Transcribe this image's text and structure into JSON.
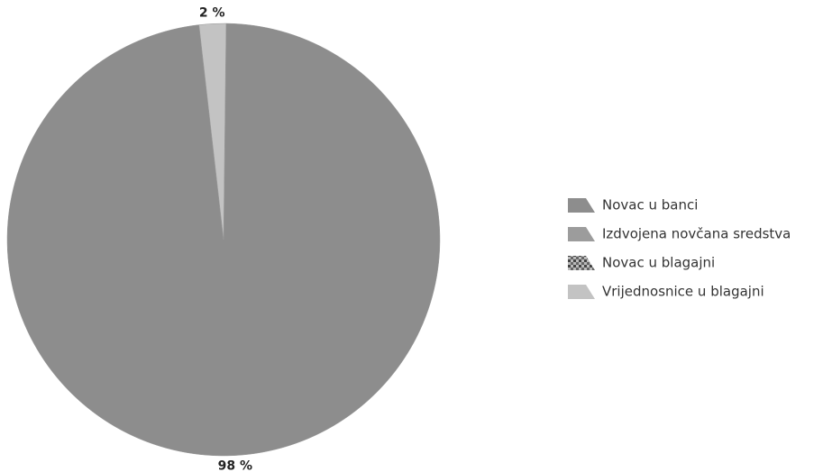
{
  "chart_data": {
    "type": "pie",
    "categories": [
      "Novac u banci",
      "Izdvojena novčana sredstva",
      "Novac u blagajni",
      "Vrijednosnice u blagajni"
    ],
    "values": [
      98,
      0,
      0,
      2
    ],
    "value_labels": [
      "98 %",
      null,
      null,
      "2 %"
    ],
    "colors": [
      "#8d8d8d",
      "#9c9c9c",
      "#6e6e6e",
      "#c3c3c3"
    ]
  }
}
